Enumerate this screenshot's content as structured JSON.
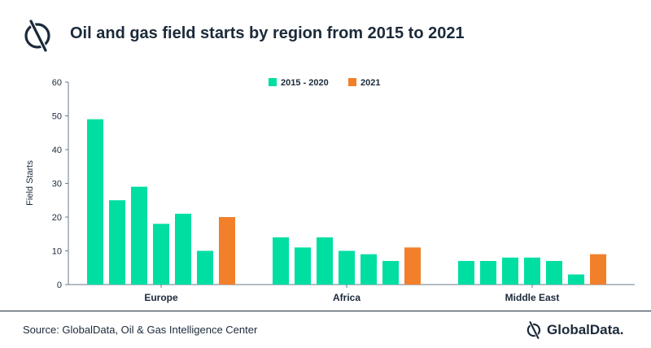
{
  "header": {
    "title": "Oil and gas field starts by region from 2015 to 2021"
  },
  "footer": {
    "source": "Source: GlobalData, Oil & Gas Intelligence Center",
    "brand": "GlobalData."
  },
  "colors": {
    "historical": "#00dea2",
    "current": "#f27f2a",
    "axis": "#6b7b8c",
    "text": "#1b2a3a"
  },
  "chart_data": {
    "type": "bar",
    "title": "Oil and gas field starts by region from 2015 to 2021",
    "xlabel": "",
    "ylabel": "Field Starts",
    "ylim": [
      0,
      60
    ],
    "yticks": [
      0,
      10,
      20,
      30,
      40,
      50,
      60
    ],
    "grid": false,
    "legend_position": "top-center",
    "legend": [
      {
        "label": "2015 - 2020",
        "color": "#00dea2"
      },
      {
        "label": "2021",
        "color": "#f27f2a"
      }
    ],
    "groups": [
      {
        "label": "Europe",
        "historical": [
          49,
          25,
          29,
          18,
          21,
          10
        ],
        "current": 20
      },
      {
        "label": "Africa",
        "historical": [
          14,
          11,
          14,
          10,
          9,
          7
        ],
        "current": 11
      },
      {
        "label": "Middle East",
        "historical": [
          7,
          7,
          8,
          8,
          7,
          3
        ],
        "current": 9
      }
    ]
  }
}
